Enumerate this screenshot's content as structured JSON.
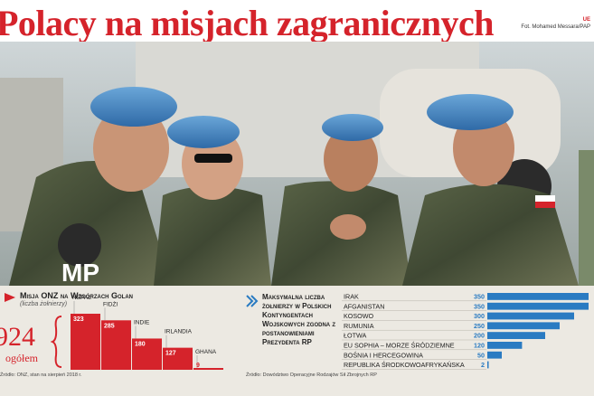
{
  "title": "Polacy na misjach  zagranicznych",
  "credit": {
    "logo": "UE",
    "text": "Fot. Mohamed Messara/PAP"
  },
  "photo": {
    "armband_text": "MP"
  },
  "golan": {
    "title": "Misja ONZ na Wzgórzach Golan",
    "subtitle": "(liczba żołnierzy)",
    "total": "924",
    "total_label": "ogółem",
    "source": "Źródło: ONZ, stan na sierpień 2018 r."
  },
  "max": {
    "title": "Maksymalna liczba żołnierzy w Polskich Kontyngentach Wojskowych zgodna z postanowieniami Prezydenta RP",
    "source": "Źródło: Dowództwo Operacyjne Rodzajów Sił Zbrojnych RP"
  },
  "chart_data": [
    {
      "type": "bar",
      "title": "Misja ONZ na Wzgórzach Golan",
      "categories": [
        "NEPAL",
        "FIDŻI",
        "INDIE",
        "IRLANDIA",
        "GHANA"
      ],
      "values": [
        323,
        285,
        180,
        127,
        9
      ],
      "colors": {
        "bar": "#d5232b"
      }
    },
    {
      "type": "bar",
      "orientation": "horizontal",
      "categories": [
        "IRAK",
        "AFGANISTAN",
        "KOSOWO",
        "RUMUNIA",
        "ŁOTWA",
        "EU SOPHIA – MORZE ŚRÓDZIEMNE",
        "BOŚNIA I HERCEGOWINA",
        "REPUBLIKA ŚRODKOWOAFRYKAŃSKA"
      ],
      "values": [
        350,
        350,
        300,
        250,
        200,
        120,
        50,
        2
      ],
      "colors": {
        "bar": "#2a7bc2"
      }
    }
  ]
}
